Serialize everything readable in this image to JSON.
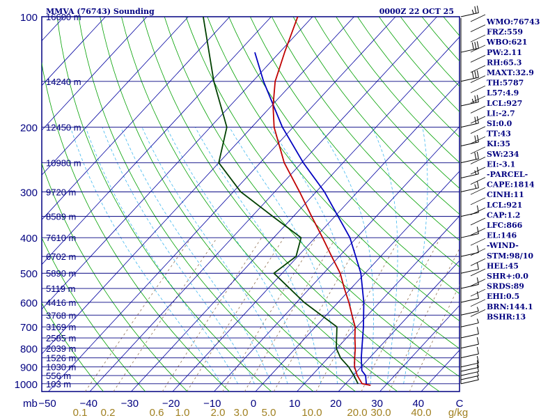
{
  "title_left": "MMVA (76743) Sounding",
  "title_right": "0000Z 22 OCT 25",
  "chart_data": {
    "type": "line",
    "xlabel": "",
    "ylabel": "",
    "pressure_levels": [
      "100",
      "200",
      "300",
      "400",
      "500",
      "600",
      "700",
      "800",
      "900",
      "1000"
    ],
    "pressure_unit": "mb",
    "temperature_ticks": [
      "−50",
      "−40",
      "−30",
      "−20",
      "−10",
      "0",
      "10",
      "20",
      "30",
      "40",
      "C"
    ],
    "mixing_ratio_ticks": [
      "0.1",
      "0.2",
      "0.6",
      "1.0",
      "2.0",
      "3.0",
      "5.0",
      "10.0",
      "20.0",
      "30.0",
      "40.0",
      "g/kg"
    ],
    "heights": [
      {
        "label": "16600 m",
        "p": 100
      },
      {
        "label": "14240 m",
        "p": 150
      },
      {
        "label": "12450 m",
        "p": 200
      },
      {
        "label": "10980 m",
        "p": 250
      },
      {
        "label": "9720 m",
        "p": 300
      },
      {
        "label": "8589 m",
        "p": 350
      },
      {
        "label": "7610 m",
        "p": 400
      },
      {
        "label": "6702 m",
        "p": 450
      },
      {
        "label": "5890 m",
        "p": 500
      },
      {
        "label": "5119 m",
        "p": 550
      },
      {
        "label": "4416 m",
        "p": 600
      },
      {
        "label": "3768 m",
        "p": 650
      },
      {
        "label": "3169 m",
        "p": 700
      },
      {
        "label": "2585 m",
        "p": 750
      },
      {
        "label": "2039 m",
        "p": 800
      },
      {
        "label": "1526 m",
        "p": 850
      },
      {
        "label": "1030 m",
        "p": 900
      },
      {
        "label": "556 m",
        "p": 950
      },
      {
        "label": "103 m",
        "p": 1000
      }
    ],
    "temperature": [
      {
        "p": 1010,
        "t": 26.4
      },
      {
        "p": 1000,
        "t": 24.0
      },
      {
        "p": 950,
        "t": 21.0
      },
      {
        "p": 900,
        "t": 18.4
      },
      {
        "p": 850,
        "t": 16.4
      },
      {
        "p": 800,
        "t": 14.4
      },
      {
        "p": 750,
        "t": 12.0
      },
      {
        "p": 700,
        "t": 9.6
      },
      {
        "p": 650,
        "t": 6.2
      },
      {
        "p": 600,
        "t": 2.6
      },
      {
        "p": 550,
        "t": -1.6
      },
      {
        "p": 500,
        "t": -6.0
      },
      {
        "p": 450,
        "t": -11.8
      },
      {
        "p": 400,
        "t": -18.2
      },
      {
        "p": 350,
        "t": -25.6
      },
      {
        "p": 300,
        "t": -34.0
      },
      {
        "p": 250,
        "t": -44.2
      },
      {
        "p": 200,
        "t": -54.6
      },
      {
        "p": 175,
        "t": -59.6
      },
      {
        "p": 150,
        "t": -64.6
      },
      {
        "p": 125,
        "t": -68.8
      },
      {
        "p": 100,
        "t": -73.6
      }
    ],
    "dewpoint": [
      {
        "p": 1000,
        "t": 23.0
      },
      {
        "p": 950,
        "t": 20.2
      },
      {
        "p": 900,
        "t": 17.0
      },
      {
        "p": 850,
        "t": 13.0
      },
      {
        "p": 800,
        "t": 9.8
      },
      {
        "p": 700,
        "t": 5.2
      },
      {
        "p": 600,
        "t": -8.2
      },
      {
        "p": 500,
        "t": -22.0
      },
      {
        "p": 450,
        "t": -20.4
      },
      {
        "p": 400,
        "t": -23.4
      },
      {
        "p": 350,
        "t": -35.0
      },
      {
        "p": 300,
        "t": -48.2
      },
      {
        "p": 250,
        "t": -60.0
      },
      {
        "p": 200,
        "t": -66.0
      },
      {
        "p": 150,
        "t": -79.4
      },
      {
        "p": 100,
        "t": -96.4
      }
    ],
    "parcel": [
      {
        "p": 1000,
        "t": 25.0
      },
      {
        "p": 950,
        "t": 23.0
      },
      {
        "p": 921,
        "t": 21.0
      },
      {
        "p": 850,
        "t": 18.0
      },
      {
        "p": 800,
        "t": 16.0
      },
      {
        "p": 700,
        "t": 11.6
      },
      {
        "p": 600,
        "t": 6.2
      },
      {
        "p": 500,
        "t": -1.0
      },
      {
        "p": 400,
        "t": -11.6
      },
      {
        "p": 300,
        "t": -28.0
      },
      {
        "p": 250,
        "t": -39.6
      },
      {
        "p": 200,
        "t": -52.6
      },
      {
        "p": 150,
        "t": -67.4
      },
      {
        "p": 125,
        "t": -76.0
      }
    ],
    "winds": [
      {
        "p": 1000,
        "dir": 90,
        "kt": 5
      },
      {
        "p": 975,
        "dir": 100,
        "kt": 5
      },
      {
        "p": 950,
        "dir": 110,
        "kt": 10
      },
      {
        "p": 925,
        "dir": 110,
        "kt": 10
      },
      {
        "p": 900,
        "dir": 100,
        "kt": 10
      },
      {
        "p": 850,
        "dir": 90,
        "kt": 10
      },
      {
        "p": 800,
        "dir": 90,
        "kt": 10
      },
      {
        "p": 750,
        "dir": 80,
        "kt": 10
      },
      {
        "p": 700,
        "dir": 80,
        "kt": 5
      },
      {
        "p": 650,
        "dir": 90,
        "kt": 5
      },
      {
        "p": 600,
        "dir": 80,
        "kt": 10
      },
      {
        "p": 550,
        "dir": 90,
        "kt": 10
      },
      {
        "p": 500,
        "dir": 80,
        "kt": 10
      },
      {
        "p": 450,
        "dir": 90,
        "kt": 10
      },
      {
        "p": 400,
        "dir": 100,
        "kt": 10
      },
      {
        "p": 350,
        "dir": 100,
        "kt": 10
      },
      {
        "p": 300,
        "dir": 80,
        "kt": 15
      },
      {
        "p": 275,
        "dir": 90,
        "kt": 15
      },
      {
        "p": 250,
        "dir": 90,
        "kt": 20
      },
      {
        "p": 225,
        "dir": 90,
        "kt": 20
      },
      {
        "p": 200,
        "dir": 80,
        "kt": 20
      },
      {
        "p": 175,
        "dir": 80,
        "kt": 25
      },
      {
        "p": 150,
        "dir": 80,
        "kt": 30
      },
      {
        "p": 125,
        "dir": 80,
        "kt": 30
      },
      {
        "p": 100,
        "dir": 80,
        "kt": 25
      }
    ]
  },
  "indices": [
    "WMO:76743",
    "FRZ:559",
    "WBO:621",
    "PW:2.11",
    "RH:65.3",
    "MAXT:32.9",
    "TH:5787",
    "L57:4.9",
    "LCL:927",
    "LI:-2.7",
    "SI:0.0",
    "TT:43",
    "KI:35",
    "SW:234",
    "EI:-3.1",
    "-PARCEL-",
    "CAPE:1814",
    "CINH:11",
    "LCL:921",
    "CAP:1.2",
    "LFC:866",
    "EL:146",
    "-WIND-",
    "STM:98/10",
    "HEL:45",
    "SHR+:0.0",
    "SRDS:89",
    "EHI:0.5",
    "BRN:144.1",
    "BSHR:13"
  ],
  "colors": {
    "border": "#000080",
    "isobar": "#000080",
    "isotherm": "#0000a0",
    "dry_adiabat": "#00a000",
    "moist_adiabat": "#40b8f0",
    "mixing_ratio": "#907050",
    "temperature": "#c00000",
    "dewpoint": "#004000",
    "parcel": "#0000c0",
    "wind": "#000000",
    "mixing_label": "#a08020"
  }
}
